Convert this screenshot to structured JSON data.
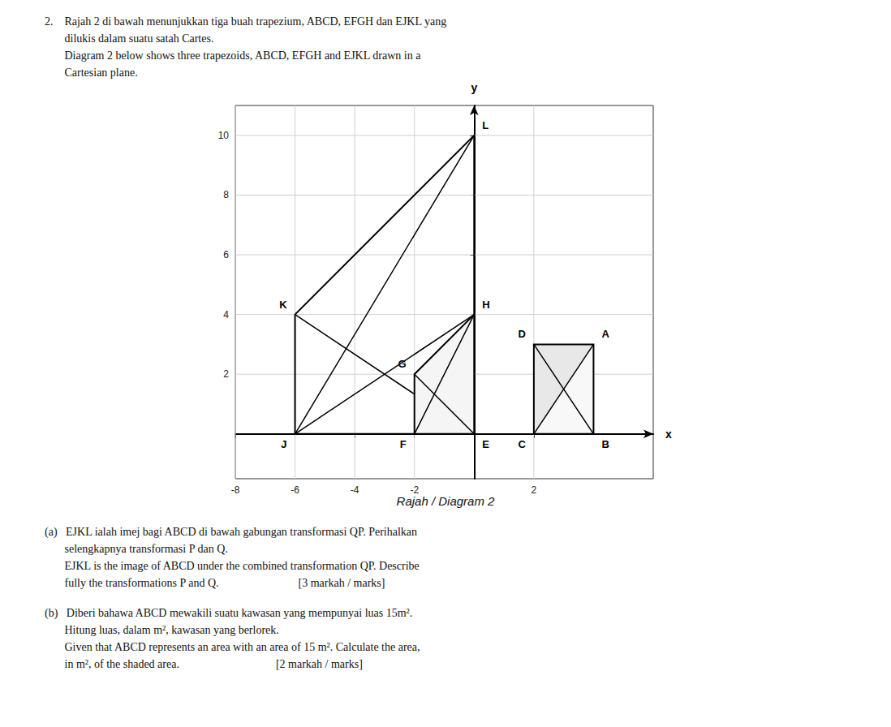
{
  "chart_data": {
    "type": "polygon",
    "title": "Rajah / Diagram 2",
    "xlabel": "x",
    "ylabel": "y",
    "xlim": [
      -8,
      6
    ],
    "ylim": [
      -1.5,
      11
    ],
    "xticks": [
      -8,
      -6,
      -4,
      -2,
      2
    ],
    "yticks": [
      2,
      4,
      6,
      8,
      10
    ],
    "grid": true,
    "series": [
      {
        "name": "EJKL",
        "points": [
          [
            0,
            0
          ],
          [
            -6,
            0
          ],
          [
            -6,
            4
          ],
          [
            0,
            10
          ]
        ],
        "vertex_labels": [
          null,
          "J",
          "K",
          "L"
        ],
        "segments": [
          [
            [
              0,
              10
            ],
            [
              -6,
              0
            ]
          ],
          [
            [
              0,
              0
            ],
            [
              -6,
              4
            ]
          ],
          [
            [
              0,
              4
            ],
            [
              -6,
              0
            ]
          ]
        ]
      },
      {
        "name": "EFGH",
        "color": "#f5f5f5",
        "points": [
          [
            0,
            0
          ],
          [
            -2,
            0
          ],
          [
            -2,
            2
          ],
          [
            0,
            4
          ]
        ],
        "vertex_labels": [
          "E",
          "F",
          "G",
          "H"
        ],
        "segments": [
          [
            [
              0,
              0
            ],
            [
              -2,
              2
            ]
          ],
          [
            [
              0,
              4
            ],
            [
              -2,
              0
            ]
          ]
        ]
      },
      {
        "name": "ABCD",
        "color": "#e8e8e8",
        "points": [
          [
            4,
            3
          ],
          [
            4,
            0
          ],
          [
            2,
            0
          ],
          [
            2,
            3
          ]
        ],
        "vertex_labels": [
          "A",
          "B",
          "C",
          "D"
        ],
        "segments": [
          [
            [
              4,
              3
            ],
            [
              2,
              0
            ]
          ],
          [
            [
              4,
              0
            ],
            [
              2,
              3
            ]
          ]
        ],
        "light_region": [
          [
            4,
            0
          ],
          [
            2,
            0
          ],
          [
            4,
            3
          ]
        ]
      }
    ],
    "annotations": [
      "2.    Rajah 2 di bawah menunjukkan tiga buah trapezium, ABCD, EFGH dan EJKL yang\n       dilukis dalam suatu satah Cartes.\n       Diagram 2 below shows three trapezoids, ABCD, EFGH and EJKL drawn in a\n       Cartesian plane.",
      "(a)   EJKL ialah imej bagi ABCD di bawah gabungan transformasi QP. Perihalkan\n       selengkapnya transformasi P dan Q.\n       EJKL is the image of ABCD under the combined transformation QP. Describe\n       fully the transformations P and Q.                            [3 markah / marks]",
      "(b)   Diberi bahawa ABCD mewakili suatu kawasan yang mempunyai luas 15m².\n       Hitung luas, dalam m², kawasan yang berlorek.\n       Given that ABCD represents an area with an area of 15 m². Calculate the area,\n       in m², of the shaded area.                                  [2 markah / marks]"
    ]
  }
}
